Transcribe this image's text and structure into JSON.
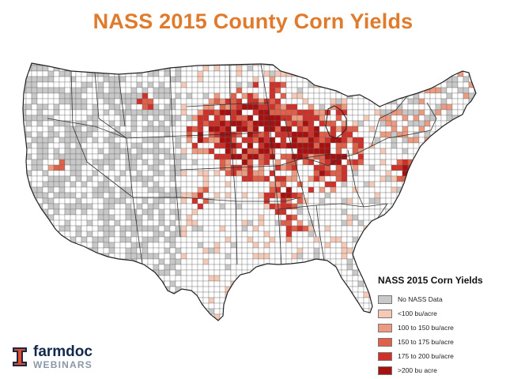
{
  "title": "NASS 2015 County Corn Yields",
  "legend": {
    "title": "NASS 2015 Corn Yields",
    "items": [
      {
        "label": "No NASS Data",
        "color": "#c8c8c8"
      },
      {
        "label": "<100 bu/acre",
        "color": "#f6c9b6"
      },
      {
        "label": "100 to 150 bu/acre",
        "color": "#ee9a80"
      },
      {
        "label": "150 to 175 bu/acre",
        "color": "#e0604a"
      },
      {
        "label": "175 to 200 bu/acre",
        "color": "#d13028"
      },
      {
        "label": ">200 bu acre",
        "color": "#a80f0f"
      }
    ]
  },
  "colors": {
    "no_data": "#c8c8c8",
    "none": "#ffffff",
    "title": "#e07a2c",
    "border": "#3a3a3a"
  },
  "logo": {
    "name": "farmdoc",
    "sub": "WEBINARS",
    "icon": "block-i-logo-icon"
  }
}
